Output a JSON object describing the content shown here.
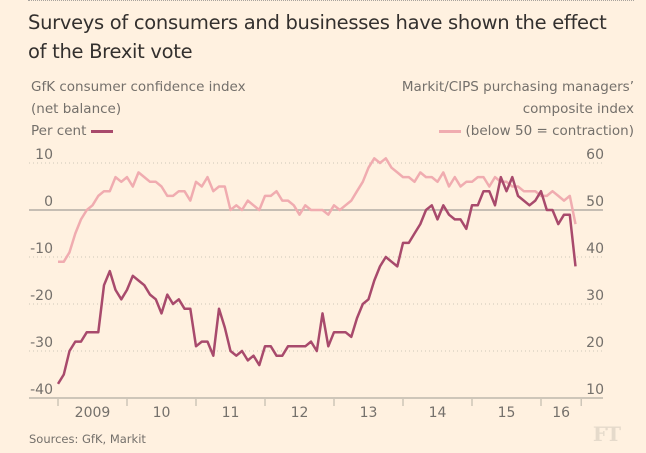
{
  "title": "Surveys of consumers and businesses have shown the effect of the Brexit vote",
  "left_label": {
    "line1": "GfK consumer confidence index",
    "line2": "(net balance)",
    "line3": "Per cent"
  },
  "right_label": {
    "line1": "Markit/CIPS purchasing managers’",
    "line2": "composite index",
    "line3": "(below 50 = contraction)"
  },
  "source": "Sources: GfK, Markit",
  "logo": "FT",
  "colors": {
    "background": "#fff1e0",
    "gfk": "#a84a6c",
    "pmi": "#f0acb0",
    "grid": "#cec6b9",
    "zero": "#b3ada5",
    "text": "#74706b"
  },
  "chart_data": {
    "type": "line",
    "title": "Surveys of consumers and businesses have shown the effect of the Brexit vote",
    "xlabel": "",
    "x_start": "2009-01",
    "x_frequency": "monthly",
    "x_tick_labels": [
      "2009",
      "10",
      "11",
      "12",
      "13",
      "14",
      "15",
      "16"
    ],
    "grid": true,
    "legend": "top",
    "left_axis": {
      "label": "GfK consumer confidence index (net balance) Per cent",
      "ticks": [
        10,
        0,
        -10,
        -20,
        -30,
        -40
      ],
      "ylim": [
        -40,
        10
      ]
    },
    "right_axis": {
      "label": "Markit/CIPS purchasing managers' composite index (below 50 = contraction)",
      "ticks": [
        60,
        50,
        40,
        30,
        20,
        10
      ],
      "ylim": [
        10,
        60
      ]
    },
    "series": [
      {
        "name": "GfK consumer confidence index",
        "axis": "left",
        "values": [
          -37,
          -35,
          -30,
          -28,
          -28,
          -26,
          -26,
          -26,
          -16,
          -13,
          -17,
          -19,
          -17,
          -14,
          -15,
          -16,
          -18,
          -19,
          -22,
          -18,
          -20,
          -19,
          -21,
          -21,
          -29,
          -28,
          -28,
          -31,
          -21,
          -25,
          -30,
          -31,
          -30,
          -32,
          -31,
          -33,
          -29,
          -29,
          -31,
          -31,
          -29,
          -29,
          -29,
          -29,
          -28,
          -30,
          -22,
          -29,
          -26,
          -26,
          -26,
          -27,
          -23,
          -20,
          -19,
          -15,
          -12,
          -10,
          -11,
          -12,
          -7,
          -7,
          -5,
          -3,
          0,
          1,
          -2,
          1,
          -1,
          -2,
          -2,
          -4,
          1,
          1,
          4,
          4,
          1,
          7,
          4,
          7,
          3,
          2,
          1,
          2,
          4,
          0,
          0,
          -3,
          -1,
          -1,
          -12
        ]
      },
      {
        "name": "Markit/CIPS purchasing managers' composite index",
        "axis": "right",
        "values": [
          39,
          39,
          41,
          45,
          48,
          50,
          51,
          53,
          54,
          54,
          57,
          56,
          57,
          55,
          58,
          57,
          56,
          56,
          55,
          53,
          53,
          54,
          54,
          52,
          56,
          55,
          57,
          54,
          55,
          55,
          50,
          51,
          50,
          52,
          51,
          50,
          53,
          53,
          54,
          52,
          52,
          51,
          49,
          51,
          50,
          50,
          50,
          49,
          51,
          50,
          51,
          52,
          54,
          56,
          59,
          61,
          60,
          61,
          59,
          58,
          57,
          57,
          56,
          58,
          57,
          57,
          56,
          58,
          55,
          57,
          55,
          56,
          56,
          57,
          57,
          55,
          57,
          56,
          56,
          55,
          55,
          54,
          54,
          54,
          53,
          53,
          54,
          53,
          52,
          53,
          47
        ]
      }
    ]
  }
}
